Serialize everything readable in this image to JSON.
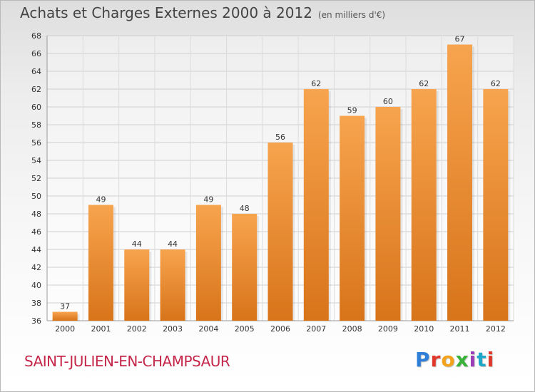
{
  "header": {
    "title": "Achats et Charges Externes 2000 à 2012",
    "unit": "(en milliers d'€)"
  },
  "footer": {
    "commune": "SAINT-JULIEN-EN-CHAMPSAUR",
    "brand": "Proxiti"
  },
  "chart_data": {
    "type": "bar",
    "title": "Achats et Charges Externes 2000 à 2012",
    "subtitle": "(en milliers d'€)",
    "categories": [
      "2000",
      "2001",
      "2002",
      "2003",
      "2004",
      "2005",
      "2006",
      "2007",
      "2008",
      "2009",
      "2010",
      "2011",
      "2012"
    ],
    "values": [
      37,
      49,
      44,
      44,
      49,
      48,
      56,
      62,
      59,
      60,
      62,
      67,
      62
    ],
    "ylim": [
      36,
      68
    ],
    "yticks": [
      36,
      38,
      40,
      42,
      44,
      46,
      48,
      50,
      52,
      54,
      56,
      58,
      60,
      62,
      64,
      66,
      68
    ],
    "grid": true,
    "bar_color": "#f0963c"
  }
}
